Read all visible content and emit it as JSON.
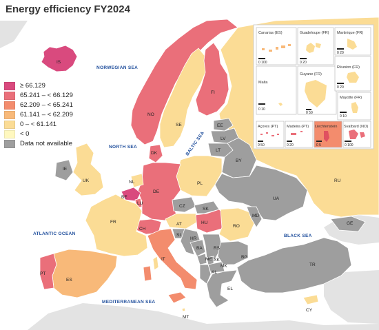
{
  "title": "Energy efficiency FY2024",
  "colors": {
    "sea": "#ffffff",
    "land_other": "#e3e3e3",
    "no_data": "#9e9e9e",
    "border": "#ffffff",
    "sea_label": "#1f4e9c"
  },
  "legend": [
    {
      "label": "≥ 66.129",
      "color": "#d94a7e"
    },
    {
      "label": "65.241 – < 66.129",
      "color": "#ea6f7a"
    },
    {
      "label": "62.209 – < 65.241",
      "color": "#f38c6d"
    },
    {
      "label": "61.141 – < 62.209",
      "color": "#f8b979"
    },
    {
      "label": "0 – < 61.141",
      "color": "#fbdc95"
    },
    {
      "label": "< 0",
      "color": "#fff8bf"
    },
    {
      "label": "Data not available",
      "color": "#9e9e9e"
    }
  ],
  "sea_labels": {
    "norwegian": "NORWEGIAN SEA",
    "north": "NORTH SEA",
    "baltic": "BALTIC SEA",
    "atlantic": "ATLANTIC OCEAN",
    "black": "BLACK SEA",
    "mediterranean": "MEDITERRANEAN SEA"
  },
  "country_labels": {
    "IS": "IS",
    "NO": "NO",
    "SE": "SE",
    "FI": "FI",
    "DK": "DK",
    "EE": "EE",
    "LV": "LV",
    "LT": "LT",
    "IE": "IE",
    "UK": "UK",
    "NL": "NL",
    "BE": "BE",
    "LU": "LU",
    "DE": "DE",
    "PL": "PL",
    "BY": "BY",
    "RU": "RU",
    "UA": "UA",
    "CZ": "CZ",
    "SK": "SK",
    "FR": "FR",
    "CH": "CH",
    "AT": "AT",
    "HU": "HU",
    "MD": "MD",
    "RO": "RO",
    "SI": "SI",
    "HR": "HR",
    "BA": "BA",
    "RS": "RS",
    "ME": "ME",
    "XK": "XK",
    "MK": "MK",
    "AL": "AL",
    "BG": "BG",
    "GE": "GE",
    "TR": "TR",
    "GR": "EL",
    "IT": "IT",
    "PT": "PT",
    "ES": "ES",
    "MT": "MT",
    "CY": "CY"
  },
  "country_values": {
    "IS": "≥ 66.129",
    "NO": "65.241 – < 66.129",
    "SE": "0 – < 61.141",
    "FI": "65.241 – < 66.129",
    "DK": "65.241 – < 66.129",
    "EE": "Data not available",
    "LV": "Data not available",
    "LT": "Data not available",
    "IE": "Data not available",
    "UK": "0 – < 61.141",
    "NL": "0 – < 61.141",
    "BE": "≥ 66.129",
    "LU": "65.241 – < 66.129",
    "DE": "65.241 – < 66.129",
    "PL": "0 – < 61.141",
    "BY": "Data not available",
    "RU": "0 – < 61.141",
    "UA": "Data not available",
    "CZ": "Data not available",
    "SK": "Data not available",
    "FR": "0 – < 61.141",
    "CH": "65.241 – < 66.129",
    "AT": "0 – < 61.141",
    "HU": "65.241 – < 66.129",
    "MD": "Data not available",
    "RO": "0 – < 61.141",
    "SI": "Data not available",
    "HR": "Data not available",
    "BA": "Data not available",
    "RS": "Data not available",
    "ME": "Data not available",
    "XK": "Data not available",
    "MK": "Data not available",
    "AL": "Data not available",
    "BG": "Data not available",
    "GE": "Data not available",
    "TR": "Data not available",
    "GR": "Data not available",
    "IT": "62.209 – < 65.241",
    "PT": "65.241 – < 66.129",
    "ES": "61.141 – < 62.209",
    "MT": "0 – < 61.141",
    "CY": "0 – < 61.141"
  },
  "insets": {
    "canarias": "Canarias (ES)",
    "guadeloupe": "Guadeloupe (FR)",
    "martinique": "Martinique (FR)",
    "guyane": "Guyane (FR)",
    "reunion": "Réunion (FR)",
    "mayotte": "Mayotte (FR)",
    "malta": "Malta",
    "acores": "Açores (PT)",
    "madeira": "Madeira (PT)",
    "liechtenstein": "Liechtenstein",
    "svalbard": "Svalbard (NO)"
  },
  "scales": {
    "canarias": "0   100",
    "guadeloupe": "0   20",
    "martinique": "0   20",
    "guyane": "0 50",
    "reunion": "0   20",
    "mayotte": "0   10",
    "malta": "0   10",
    "acores": "0   50",
    "madeira": "0   20",
    "liechtenstein": "0   5",
    "svalbard": "0 100"
  }
}
